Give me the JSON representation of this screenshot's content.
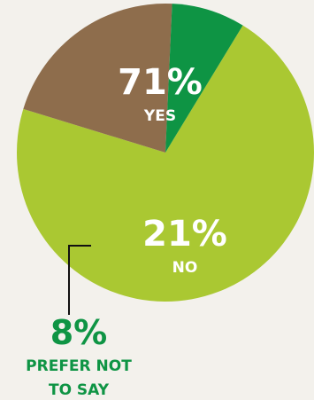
{
  "chart_data": {
    "type": "pie",
    "slices": [
      {
        "label": "YES",
        "value": 71,
        "value_label": "71%",
        "color": "#aac832"
      },
      {
        "label": "NO",
        "value": 21,
        "value_label": "21%",
        "color": "#8e6d4c"
      },
      {
        "label": "PREFER NOT TO SAY",
        "label_lines": [
          "PREFER NOT",
          "TO SAY"
        ],
        "value": 8,
        "value_label": "8%",
        "color": "#0e9444"
      }
    ],
    "label_colors": {
      "inside": "#ffffff",
      "outside": "#0e9444",
      "leader": "#111111"
    }
  }
}
